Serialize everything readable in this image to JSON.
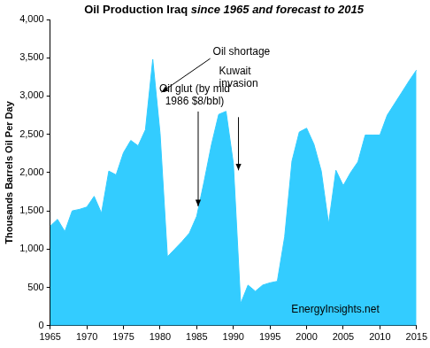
{
  "chart_data": {
    "type": "area",
    "title": "Oil Production Iraq",
    "subtitle": "since 1965 and forecast to 2015",
    "y_label": "Thousands Barrels Oil Per Day",
    "x": [
      1965,
      1966,
      1967,
      1968,
      1969,
      1970,
      1971,
      1972,
      1973,
      1974,
      1975,
      1976,
      1977,
      1978,
      1979,
      1980,
      1981,
      1982,
      1983,
      1984,
      1985,
      1986,
      1987,
      1988,
      1989,
      1990,
      1991,
      1992,
      1993,
      1994,
      1995,
      1996,
      1997,
      1998,
      1999,
      2000,
      2001,
      2002,
      2003,
      2004,
      2005,
      2006,
      2007,
      2008,
      2009,
      2010,
      2011,
      2012,
      2013,
      2014,
      2015
    ],
    "values": [
      1300,
      1390,
      1230,
      1500,
      1520,
      1550,
      1690,
      1470,
      2020,
      1970,
      2260,
      2420,
      2350,
      2560,
      3480,
      2510,
      900,
      1000,
      1100,
      1210,
      1430,
      1880,
      2360,
      2760,
      2800,
      2120,
      290,
      530,
      450,
      530,
      560,
      580,
      1160,
      2150,
      2530,
      2580,
      2370,
      2020,
      1330,
      2030,
      1830,
      2000,
      2140,
      2490,
      2490,
      2490,
      2750,
      2900,
      3050,
      3200,
      3340
    ],
    "color": "#33ccff",
    "xlim": [
      1965,
      2015
    ],
    "xticks": [
      1965,
      1970,
      1975,
      1980,
      1985,
      1990,
      1995,
      2000,
      2005,
      2010,
      2015
    ],
    "ylim": [
      0,
      4000
    ],
    "yticks": [
      0,
      500,
      {
        "value": 1000,
        "label": "1,000"
      },
      {
        "value": 1500,
        "label": "1,500"
      },
      {
        "value": 2000,
        "label": "2,000"
      },
      {
        "value": 2500,
        "label": "2,500"
      },
      {
        "value": 3000,
        "label": "3,000"
      },
      {
        "value": 3500,
        "label": "3,500"
      },
      {
        "value": 4000,
        "label": "4,000"
      }
    ],
    "grid": false,
    "annotations": [
      {
        "text": "Oil shortage",
        "x": 1980.2,
        "y": 3050
      },
      {
        "text": "Oil glut (by mid\n1986 $8/bbl)",
        "x": 1985.2,
        "y": 1560
      },
      {
        "text": "Kuwait\ninvasion",
        "x": 1990.7,
        "y": 2030
      }
    ],
    "credit": "EnergyInsights.net"
  }
}
